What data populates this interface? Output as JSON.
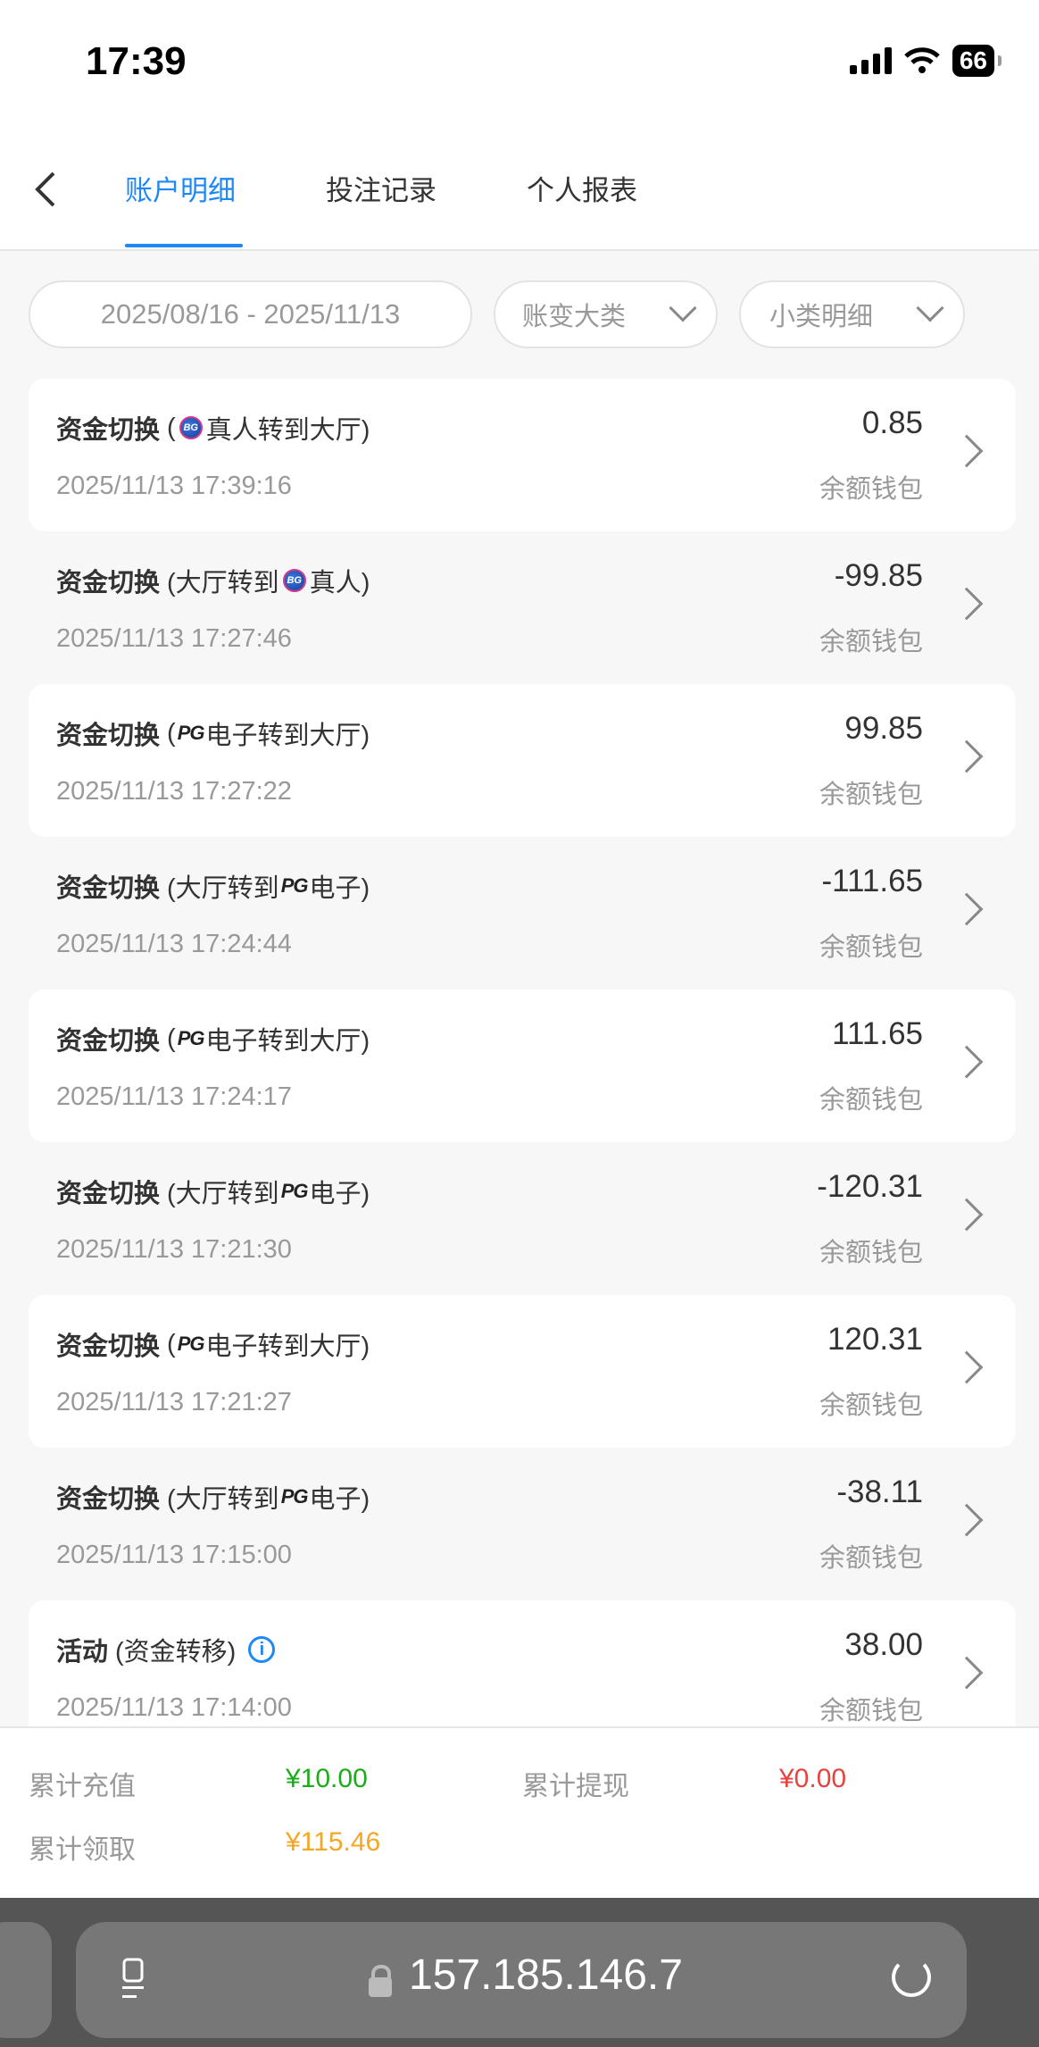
{
  "status_bar": {
    "time": "17:39",
    "battery": "66"
  },
  "header": {
    "tabs": [
      {
        "label": "账户明细",
        "active": true
      },
      {
        "label": "投注记录"
      },
      {
        "label": "个人报表"
      }
    ]
  },
  "filters": {
    "date_range": "2025/08/16 - 2025/11/13",
    "category": "账变大类",
    "subcategory": "小类明细"
  },
  "records": [
    {
      "type": "资金切换",
      "pre": "(",
      "icon": "bg",
      "post": "真人转到大厅)",
      "time": "2025/11/13 17:39:16",
      "amount": "0.85",
      "wallet": "余额钱包"
    },
    {
      "type": "资金切换",
      "pre": "(大厅转到",
      "icon": "bg",
      "post": "真人)",
      "time": "2025/11/13 17:27:46",
      "amount": "-99.85",
      "wallet": "余额钱包"
    },
    {
      "type": "资金切换",
      "pre": "(",
      "icon": "pg",
      "post": "电子转到大厅)",
      "time": "2025/11/13 17:27:22",
      "amount": "99.85",
      "wallet": "余额钱包"
    },
    {
      "type": "资金切换",
      "pre": "(大厅转到",
      "icon": "pg",
      "post": "电子)",
      "time": "2025/11/13 17:24:44",
      "amount": "-111.65",
      "wallet": "余额钱包"
    },
    {
      "type": "资金切换",
      "pre": "(",
      "icon": "pg",
      "post": "电子转到大厅)",
      "time": "2025/11/13 17:24:17",
      "amount": "111.65",
      "wallet": "余额钱包"
    },
    {
      "type": "资金切换",
      "pre": "(大厅转到",
      "icon": "pg",
      "post": "电子)",
      "time": "2025/11/13 17:21:30",
      "amount": "-120.31",
      "wallet": "余额钱包"
    },
    {
      "type": "资金切换",
      "pre": "(",
      "icon": "pg",
      "post": "电子转到大厅)",
      "time": "2025/11/13 17:21:27",
      "amount": "120.31",
      "wallet": "余额钱包"
    },
    {
      "type": "资金切换",
      "pre": "(大厅转到",
      "icon": "pg",
      "post": "电子)",
      "time": "2025/11/13 17:15:00",
      "amount": "-38.11",
      "wallet": "余额钱包"
    },
    {
      "type": "活动",
      "pre": "(资金转移)",
      "icon": "info",
      "post": "",
      "time": "2025/11/13 17:14:00",
      "amount": "38.00",
      "wallet": "余额钱包"
    }
  ],
  "logos": {
    "bg": "BG",
    "pg": "PG",
    "info": "i"
  },
  "summary": {
    "deposit_label": "累计充值",
    "deposit_value": "¥10.00",
    "deposit_color": "#1aad19",
    "withdraw_label": "累计提现",
    "withdraw_value": "¥0.00",
    "withdraw_color": "#e64340",
    "claim_label": "累计领取",
    "claim_value": "¥115.46",
    "claim_color": "#f5a623"
  },
  "browser": {
    "url": "157.185.146.7"
  }
}
